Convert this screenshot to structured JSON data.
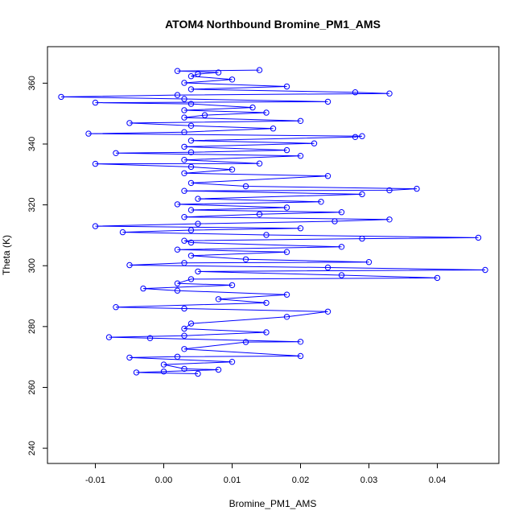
{
  "chart_data": {
    "type": "scatter",
    "title": "ATOM4 Northbound Bromine_PM1_AMS",
    "xlabel": "Bromine_PM1_AMS",
    "ylabel": "Theta (K)",
    "xlim": [
      -0.017,
      0.049
    ],
    "ylim": [
      235,
      372
    ],
    "xticks": [
      "-0.01",
      "0.00",
      "0.01",
      "0.02",
      "0.03",
      "0.04"
    ],
    "yticks": [
      "240",
      "260",
      "280",
      "300",
      "320",
      "340",
      "360"
    ],
    "grid": false,
    "legend": "none",
    "series": [
      {
        "color": "#0000ff",
        "marker": "open-circle",
        "connected": true,
        "points": [
          [
            0.005,
            264.5
          ],
          [
            0.0,
            265.2
          ],
          [
            0.008,
            265.8
          ],
          [
            -0.004,
            264.9
          ],
          [
            0.003,
            266.1
          ],
          [
            0.01,
            268.4
          ],
          [
            0.0,
            267.5
          ],
          [
            0.002,
            270.1
          ],
          [
            0.02,
            270.3
          ],
          [
            -0.005,
            269.8
          ],
          [
            0.003,
            272.6
          ],
          [
            0.012,
            274.9
          ],
          [
            0.02,
            275.0
          ],
          [
            -0.002,
            276.2
          ],
          [
            0.003,
            277.0
          ],
          [
            -0.008,
            276.5
          ],
          [
            0.015,
            278.1
          ],
          [
            0.003,
            279.3
          ],
          [
            0.018,
            283.2
          ],
          [
            0.004,
            281.0
          ],
          [
            0.024,
            284.9
          ],
          [
            -0.007,
            286.4
          ],
          [
            0.003,
            285.9
          ],
          [
            0.015,
            287.8
          ],
          [
            0.008,
            289.0
          ],
          [
            0.018,
            290.5
          ],
          [
            0.002,
            291.8
          ],
          [
            -0.003,
            292.5
          ],
          [
            0.01,
            293.6
          ],
          [
            0.002,
            294.2
          ],
          [
            0.04,
            296.0
          ],
          [
            0.004,
            295.6
          ],
          [
            0.026,
            296.9
          ],
          [
            0.047,
            298.6
          ],
          [
            0.005,
            298.1
          ],
          [
            0.024,
            299.4
          ],
          [
            -0.005,
            300.2
          ],
          [
            0.003,
            300.9
          ],
          [
            0.03,
            301.2
          ],
          [
            0.012,
            302.1
          ],
          [
            0.004,
            303.3
          ],
          [
            0.018,
            304.5
          ],
          [
            0.002,
            305.3
          ],
          [
            0.026,
            306.2
          ],
          [
            0.004,
            307.6
          ],
          [
            0.029,
            308.9
          ],
          [
            0.046,
            309.2
          ],
          [
            0.003,
            308.2
          ],
          [
            0.015,
            310.1
          ],
          [
            -0.006,
            311.0
          ],
          [
            0.004,
            311.7
          ],
          [
            0.02,
            312.3
          ],
          [
            -0.01,
            313.0
          ],
          [
            0.005,
            313.8
          ],
          [
            0.025,
            314.6
          ],
          [
            0.033,
            315.2
          ],
          [
            0.003,
            316.0
          ],
          [
            0.014,
            316.9
          ],
          [
            0.026,
            317.6
          ],
          [
            0.004,
            318.3
          ],
          [
            0.018,
            319.1
          ],
          [
            0.002,
            320.2
          ],
          [
            0.023,
            321.0
          ],
          [
            0.005,
            322.0
          ],
          [
            0.029,
            323.5
          ],
          [
            0.037,
            325.3
          ],
          [
            0.003,
            324.6
          ],
          [
            0.033,
            324.8
          ],
          [
            0.012,
            326.1
          ],
          [
            0.004,
            327.2
          ],
          [
            0.024,
            329.5
          ],
          [
            0.003,
            330.4
          ],
          [
            0.01,
            331.6
          ],
          [
            0.004,
            332.5
          ],
          [
            0.014,
            333.6
          ],
          [
            -0.01,
            333.5
          ],
          [
            0.003,
            334.8
          ],
          [
            0.02,
            336.1
          ],
          [
            0.004,
            337.3
          ],
          [
            -0.007,
            337.0
          ],
          [
            0.018,
            338.0
          ],
          [
            0.003,
            339.1
          ],
          [
            0.022,
            340.2
          ],
          [
            0.004,
            341.1
          ],
          [
            0.028,
            342.3
          ],
          [
            0.029,
            342.6
          ],
          [
            -0.011,
            343.4
          ],
          [
            0.003,
            343.9
          ],
          [
            0.016,
            345.1
          ],
          [
            0.004,
            346.0
          ],
          [
            -0.005,
            346.9
          ],
          [
            0.02,
            347.6
          ],
          [
            0.003,
            348.7
          ],
          [
            0.006,
            349.5
          ],
          [
            0.015,
            350.3
          ],
          [
            0.003,
            351.1
          ],
          [
            0.013,
            352.0
          ],
          [
            0.004,
            353.2
          ],
          [
            0.024,
            353.9
          ],
          [
            -0.01,
            353.6
          ],
          [
            0.003,
            354.8
          ],
          [
            -0.015,
            355.5
          ],
          [
            0.002,
            356.1
          ],
          [
            0.033,
            356.6
          ],
          [
            0.028,
            357.0
          ],
          [
            0.004,
            358.0
          ],
          [
            0.018,
            358.9
          ],
          [
            0.003,
            360.1
          ],
          [
            0.01,
            361.2
          ],
          [
            0.004,
            362.3
          ],
          [
            0.014,
            364.3
          ],
          [
            0.002,
            364.0
          ],
          [
            0.008,
            363.5
          ],
          [
            0.005,
            363.0
          ]
        ]
      }
    ]
  }
}
